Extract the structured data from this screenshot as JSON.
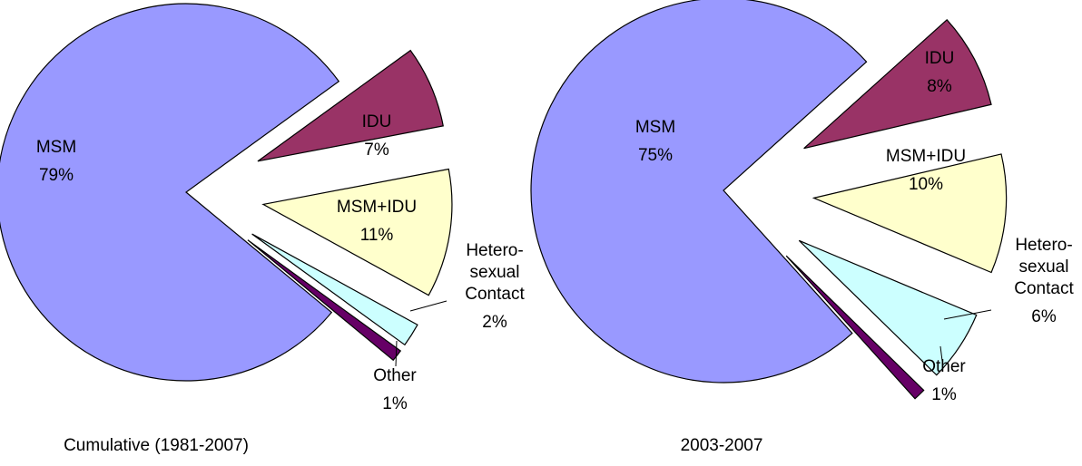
{
  "chart_data": [
    {
      "type": "pie",
      "title": "Cumulative (1981-2007)",
      "categories": [
        "IDU",
        "MSM+IDU",
        "Hetero-\nsexual\nContact",
        "Other",
        "MSM"
      ],
      "values": [
        7,
        11,
        2,
        1,
        79
      ],
      "value_labels": [
        "7%",
        "11%",
        "2%",
        "1%",
        "79%"
      ],
      "colors": [
        "#993366",
        "#ffffcc",
        "#ccffff",
        "#660066",
        "#9999ff"
      ]
    },
    {
      "type": "pie",
      "title": "2003-2007",
      "categories": [
        "IDU",
        "MSM+IDU",
        "Hetero-\nsexual\nContact",
        "Other",
        "MSM"
      ],
      "values": [
        8,
        10,
        6,
        1,
        75
      ],
      "value_labels": [
        "8%",
        "10%",
        "6%",
        "1%",
        "75%"
      ],
      "colors": [
        "#993366",
        "#ffffcc",
        "#ccffff",
        "#660066",
        "#9999ff"
      ]
    }
  ]
}
